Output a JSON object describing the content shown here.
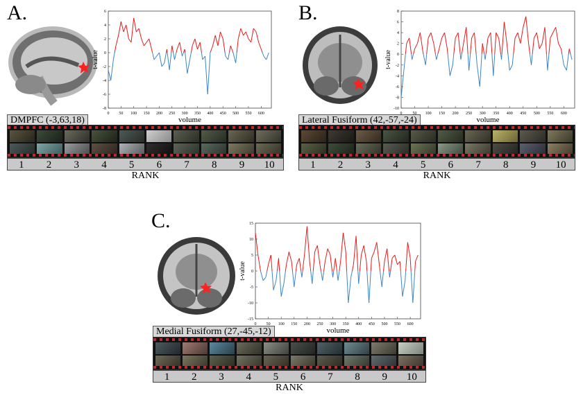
{
  "panels": [
    {
      "label": "A.",
      "roi": "DMPFC (-3,63,18)",
      "rank_label": "RANK",
      "ranks": [
        "1",
        "2",
        "3",
        "4",
        "5",
        "6",
        "7",
        "8",
        "9",
        "10"
      ],
      "chart_data": {
        "type": "line",
        "xlabel": "volume",
        "ylabel": "t-value",
        "xlim": [
          0,
          640
        ],
        "ylim": [
          -8,
          6
        ],
        "xticks": [
          0,
          50,
          100,
          150,
          200,
          250,
          300,
          350,
          400,
          450,
          500,
          550,
          600
        ],
        "yticks": [
          -8,
          -6,
          -4,
          -2,
          0,
          2,
          4,
          6
        ],
        "colors": {
          "positive": "#e8191a",
          "negative": "#3b86c6"
        },
        "x": [
          0,
          10,
          20,
          30,
          40,
          50,
          60,
          70,
          80,
          90,
          100,
          110,
          120,
          130,
          140,
          150,
          160,
          170,
          180,
          190,
          200,
          210,
          220,
          230,
          240,
          250,
          260,
          270,
          280,
          290,
          300,
          310,
          320,
          330,
          340,
          350,
          360,
          370,
          380,
          390,
          400,
          410,
          420,
          430,
          440,
          450,
          460,
          470,
          480,
          490,
          500,
          510,
          520,
          530,
          540,
          550,
          560,
          570,
          580,
          590,
          600,
          610,
          620,
          630
        ],
        "values": [
          -2.5,
          -4,
          -1,
          1,
          2.5,
          4.5,
          3,
          4,
          2,
          1.5,
          5,
          3,
          3.5,
          2,
          1,
          1.5,
          2,
          0.5,
          -1,
          -0.5,
          0,
          -2,
          -1.5,
          0.5,
          -2.5,
          1,
          -1,
          0.5,
          1.5,
          -0.5,
          0.5,
          -3,
          -1,
          1,
          2,
          0.5,
          1.5,
          -1,
          -0.5,
          -6,
          0,
          1,
          2.5,
          1,
          3,
          2,
          -0.5,
          -1,
          1,
          0,
          -1.5,
          2,
          3.5,
          2.5,
          3,
          2,
          1.5,
          3.5,
          3,
          1.5,
          0.5,
          -0.5,
          -1,
          0
        ]
      }
    },
    {
      "label": "B.",
      "roi": "Lateral Fusiform (42,-57,-24)",
      "rank_label": "RANK",
      "ranks": [
        "1",
        "2",
        "3",
        "4",
        "5",
        "6",
        "7",
        "8",
        "9",
        "10"
      ],
      "chart_data": {
        "type": "line",
        "xlabel": "volume",
        "ylabel": "t-value",
        "xlim": [
          0,
          640
        ],
        "ylim": [
          -10,
          8
        ],
        "xticks": [
          0,
          50,
          100,
          150,
          200,
          250,
          300,
          350,
          400,
          450,
          500,
          550,
          600
        ],
        "yticks": [
          -10,
          -8,
          -6,
          -4,
          -2,
          0,
          2,
          4,
          6,
          8
        ],
        "colors": {
          "positive": "#e8191a",
          "negative": "#3b86c6"
        },
        "x": [
          0,
          10,
          20,
          30,
          40,
          50,
          60,
          70,
          80,
          90,
          100,
          110,
          120,
          130,
          140,
          150,
          160,
          170,
          180,
          190,
          200,
          210,
          220,
          230,
          240,
          250,
          260,
          270,
          280,
          290,
          300,
          310,
          320,
          330,
          340,
          350,
          360,
          370,
          380,
          390,
          400,
          410,
          420,
          430,
          440,
          450,
          460,
          470,
          480,
          490,
          500,
          510,
          520,
          530,
          540,
          550,
          560,
          570,
          580,
          590,
          600,
          610,
          620,
          630
        ],
        "values": [
          -8,
          -3,
          2,
          3,
          -1,
          1,
          2,
          4,
          0.5,
          -2,
          3,
          4,
          2,
          -1,
          1,
          3,
          4,
          1,
          -4,
          -2,
          3,
          4,
          -1,
          2,
          5,
          -3,
          3,
          4,
          -2,
          -6,
          2,
          -1,
          3,
          4,
          -4,
          4,
          3,
          -1,
          6,
          2,
          -3,
          -2,
          3,
          4,
          2,
          5,
          7,
          2,
          -2,
          3,
          4,
          1,
          2,
          5,
          -3,
          3,
          4,
          5,
          2,
          1,
          -2,
          -3,
          1,
          -1
        ]
      }
    },
    {
      "label": "C.",
      "roi": "Medial Fusiform (27,-45,-12)",
      "rank_label": "RANK",
      "ranks": [
        "1",
        "2",
        "3",
        "4",
        "5",
        "6",
        "7",
        "8",
        "9",
        "10"
      ],
      "chart_data": {
        "type": "line",
        "xlabel": "volume",
        "ylabel": "t-value",
        "xlim": [
          0,
          640
        ],
        "ylim": [
          -15,
          15
        ],
        "xticks": [
          0,
          50,
          100,
          150,
          200,
          250,
          300,
          350,
          400,
          450,
          500,
          550,
          600
        ],
        "yticks": [
          -15,
          -10,
          -5,
          0,
          5,
          10,
          15
        ],
        "colors": {
          "positive": "#e8191a",
          "negative": "#3b86c6"
        },
        "x": [
          0,
          10,
          20,
          30,
          40,
          50,
          60,
          70,
          80,
          90,
          100,
          110,
          120,
          130,
          140,
          150,
          160,
          170,
          180,
          190,
          200,
          210,
          220,
          230,
          240,
          250,
          260,
          270,
          280,
          290,
          300,
          310,
          320,
          330,
          340,
          350,
          360,
          370,
          380,
          390,
          400,
          410,
          420,
          430,
          440,
          450,
          460,
          470,
          480,
          490,
          500,
          510,
          520,
          530,
          540,
          550,
          560,
          570,
          580,
          590,
          600,
          610,
          620,
          630
        ],
        "values": [
          12,
          5,
          0,
          -3,
          -2,
          2,
          5,
          -6,
          -3,
          4,
          -8,
          -4,
          2,
          6,
          3,
          -5,
          2,
          4,
          -2,
          5,
          14,
          3,
          -4,
          6,
          8,
          2,
          -3,
          3,
          7,
          5,
          -2,
          4,
          -3,
          3,
          12,
          6,
          -10,
          -2,
          2,
          11,
          -4,
          5,
          8,
          3,
          -10,
          4,
          6,
          9,
          2,
          -5,
          3,
          7,
          -2,
          4,
          5,
          2,
          3,
          -8,
          -3,
          9,
          4,
          -10,
          3,
          5
        ]
      }
    }
  ]
}
